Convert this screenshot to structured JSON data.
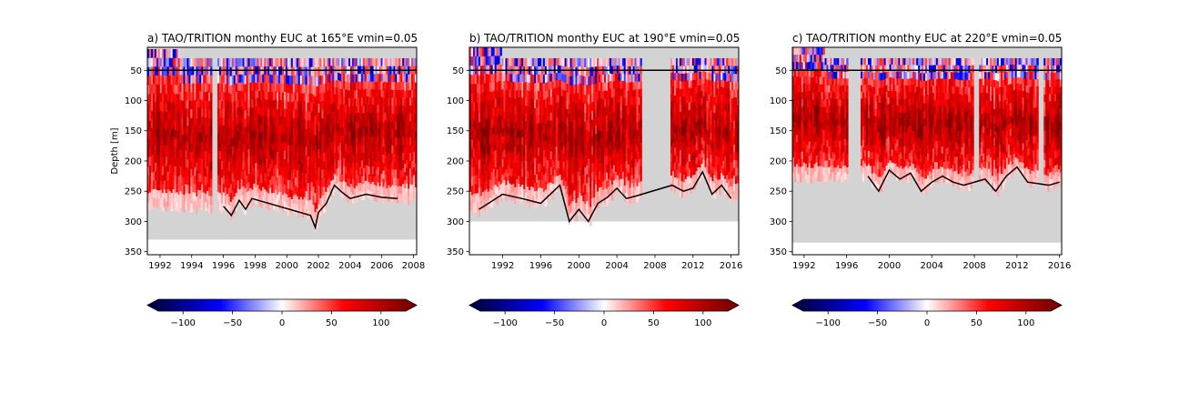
{
  "chart_data": [
    {
      "type": "heatmap",
      "title": "a) TAO/TRITION monthy EUC at 165°E vmin=0.05",
      "xlabel": "",
      "ylabel": "Depth [m]",
      "xlim": [
        1991.2,
        2008.2
      ],
      "ylim": [
        355,
        12
      ],
      "y_inverted": true,
      "xticks": [
        1992,
        1994,
        1996,
        1998,
        2000,
        2002,
        2004,
        2006,
        2008
      ],
      "xtick_labels": [
        "1992",
        "1994",
        "1996",
        "1998",
        "2000",
        "2002",
        "2004",
        "2006",
        "2008"
      ],
      "yticks": [
        50,
        100,
        150,
        200,
        250,
        300,
        350
      ],
      "ytick_labels": [
        "50",
        "100",
        "150",
        "200",
        "250",
        "300",
        "350"
      ],
      "reference_line_depth": 50,
      "masked_color": "#d3d3d3",
      "data_depth_max": 330,
      "data_gaps": [
        [
          1995.2,
          1995.6
        ]
      ],
      "euc_top_depth": 30,
      "euc_top_depth_early": 15,
      "bottom_line": [
        [
          1996.0,
          275
        ],
        [
          1996.5,
          290
        ],
        [
          1997.0,
          265
        ],
        [
          1997.4,
          280
        ],
        [
          1997.8,
          262
        ],
        [
          2001.5,
          290
        ],
        [
          2001.8,
          310
        ],
        [
          2002.0,
          285
        ],
        [
          2002.5,
          270
        ],
        [
          2003.0,
          240
        ],
        [
          2003.5,
          252
        ],
        [
          2004.0,
          262
        ],
        [
          2005.0,
          255
        ],
        [
          2006.0,
          260
        ],
        [
          2007.0,
          262
        ]
      ],
      "colorbar": {
        "cmap": "seismic",
        "vmin": -125,
        "vmax": 125,
        "ticks": [
          -100,
          -50,
          0,
          50,
          100
        ],
        "tick_labels": [
          "−100",
          "−50",
          "0",
          "50",
          "100"
        ],
        "extend": "both"
      }
    },
    {
      "type": "heatmap",
      "title": "b) TAO/TRITION monthy EUC at 190°E vmin=0.05",
      "xlabel": "",
      "ylabel": "",
      "xlim": [
        1988.5,
        2016.8
      ],
      "ylim": [
        355,
        12
      ],
      "y_inverted": true,
      "xticks": [
        1992,
        1996,
        2000,
        2004,
        2008,
        2012,
        2016
      ],
      "xtick_labels": [
        "1992",
        "1996",
        "2000",
        "2004",
        "2008",
        "2012",
        "2016"
      ],
      "yticks": [
        50,
        100,
        150,
        200,
        250,
        300,
        350
      ],
      "ytick_labels": [
        "50",
        "100",
        "150",
        "200",
        "250",
        "300",
        "350"
      ],
      "reference_line_depth": 50,
      "masked_color": "#d3d3d3",
      "data_depth_max": 300,
      "data_gaps": [
        [
          2006.6,
          2009.5
        ]
      ],
      "euc_top_depth": 30,
      "euc_top_depth_early": 12,
      "bottom_line": [
        [
          1989.5,
          280
        ],
        [
          1990.5,
          270
        ],
        [
          1992.0,
          255
        ],
        [
          1994.0,
          262
        ],
        [
          1996.0,
          270
        ],
        [
          1998.0,
          240
        ],
        [
          1999.0,
          300
        ],
        [
          2000.0,
          280
        ],
        [
          2001.0,
          300
        ],
        [
          2002.0,
          270
        ],
        [
          2003.0,
          260
        ],
        [
          2004.0,
          245
        ],
        [
          2005.0,
          262
        ],
        [
          2006.0,
          258
        ],
        [
          2009.8,
          240
        ],
        [
          2011.0,
          250
        ],
        [
          2012.0,
          245
        ],
        [
          2013.0,
          218
        ],
        [
          2014.0,
          255
        ],
        [
          2015.0,
          240
        ],
        [
          2016.0,
          262
        ]
      ],
      "colorbar": {
        "cmap": "seismic",
        "vmin": -125,
        "vmax": 125,
        "ticks": [
          -100,
          -50,
          0,
          50,
          100
        ],
        "tick_labels": [
          "−100",
          "−50",
          "0",
          "50",
          "100"
        ],
        "extend": "both"
      }
    },
    {
      "type": "heatmap",
      "title": "c) TAO/TRITION monthy EUC at 220°E vmin=0.05",
      "xlabel": "",
      "ylabel": "",
      "xlim": [
        1990.9,
        2016.2
      ],
      "ylim": [
        355,
        12
      ],
      "y_inverted": true,
      "xticks": [
        1992,
        1996,
        2000,
        2004,
        2008,
        2012,
        2016
      ],
      "xtick_labels": [
        "1992",
        "1996",
        "2000",
        "2004",
        "2008",
        "2012",
        "2016"
      ],
      "yticks": [
        50,
        100,
        150,
        200,
        250,
        300,
        350
      ],
      "ytick_labels": [
        "50",
        "100",
        "150",
        "200",
        "250",
        "300",
        "350"
      ],
      "reference_line_depth": 50,
      "masked_color": "#d3d3d3",
      "data_depth_max": 335,
      "data_gaps": [
        [
          1996.0,
          1997.2
        ],
        [
          2007.9,
          2008.4
        ],
        [
          2014.0,
          2014.5
        ]
      ],
      "euc_top_depth": 30,
      "euc_top_depth_early": 12,
      "bottom_line": [
        [
          1998.0,
          225
        ],
        [
          1999.0,
          250
        ],
        [
          2000.0,
          215
        ],
        [
          2001.0,
          230
        ],
        [
          2002.0,
          220
        ],
        [
          2003.0,
          250
        ],
        [
          2004.0,
          235
        ],
        [
          2005.0,
          225
        ],
        [
          2006.0,
          235
        ],
        [
          2007.0,
          240
        ],
        [
          2009.0,
          230
        ],
        [
          2010.0,
          250
        ],
        [
          2011.0,
          225
        ],
        [
          2012.0,
          210
        ],
        [
          2013.0,
          235
        ],
        [
          2015.0,
          240
        ],
        [
          2016.0,
          235
        ]
      ],
      "colorbar": {
        "cmap": "seismic",
        "vmin": -125,
        "vmax": 125,
        "ticks": [
          -100,
          -50,
          0,
          50,
          100
        ],
        "tick_labels": [
          "−100",
          "−50",
          "0",
          "50",
          "100"
        ],
        "extend": "both"
      }
    }
  ]
}
